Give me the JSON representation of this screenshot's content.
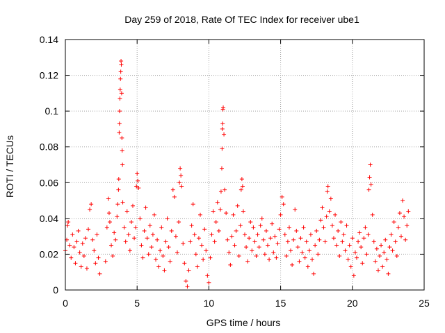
{
  "chart_data": {
    "type": "scatter",
    "title": "Day 259 of 2018, Rate Of TEC Index for receiver ube1",
    "xlabel": "GPS time / hours",
    "ylabel": "ROTI / TECUs",
    "xlim": [
      0,
      25
    ],
    "ylim": [
      0,
      0.14
    ],
    "xticks": [
      "0",
      "5",
      "10",
      "15",
      "20",
      "25"
    ],
    "yticks": [
      "0",
      "0.02",
      "0.04",
      "0.06",
      "0.08",
      "0.1",
      "0.12",
      "0.14"
    ],
    "grid": true,
    "marker": "plus",
    "series": [
      {
        "color": "#ff0000",
        "points": [
          [
            0.0,
            0.022
          ],
          [
            0.1,
            0.028
          ],
          [
            0.15,
            0.036
          ],
          [
            0.2,
            0.038
          ],
          [
            0.3,
            0.025
          ],
          [
            0.4,
            0.018
          ],
          [
            0.5,
            0.031
          ],
          [
            0.6,
            0.024
          ],
          [
            0.7,
            0.015
          ],
          [
            0.8,
            0.027
          ],
          [
            0.9,
            0.033
          ],
          [
            1.0,
            0.021
          ],
          [
            1.1,
            0.013
          ],
          [
            1.2,
            0.026
          ],
          [
            1.3,
            0.019
          ],
          [
            1.4,
            0.029
          ],
          [
            1.5,
            0.012
          ],
          [
            1.6,
            0.034
          ],
          [
            1.7,
            0.045
          ],
          [
            1.8,
            0.048
          ],
          [
            1.9,
            0.028
          ],
          [
            2.0,
            0.022
          ],
          [
            2.1,
            0.015
          ],
          [
            2.2,
            0.031
          ],
          [
            2.3,
            0.018
          ],
          [
            2.4,
            0.009
          ],
          [
            2.8,
            0.016
          ],
          [
            2.9,
            0.035
          ],
          [
            3.0,
            0.051
          ],
          [
            3.05,
            0.043
          ],
          [
            3.1,
            0.038
          ],
          [
            3.2,
            0.025
          ],
          [
            3.3,
            0.019
          ],
          [
            3.4,
            0.032
          ],
          [
            3.5,
            0.028
          ],
          [
            3.6,
            0.041
          ],
          [
            3.65,
            0.048
          ],
          [
            3.7,
            0.056
          ],
          [
            3.72,
            0.062
          ],
          [
            3.75,
            0.088
          ],
          [
            3.77,
            0.093
          ],
          [
            3.78,
            0.1
          ],
          [
            3.8,
            0.107
          ],
          [
            3.82,
            0.112
          ],
          [
            3.84,
            0.118
          ],
          [
            3.86,
            0.122
          ],
          [
            3.88,
            0.128
          ],
          [
            3.9,
            0.126
          ],
          [
            3.92,
            0.11
          ],
          [
            3.94,
            0.085
          ],
          [
            3.96,
            0.078
          ],
          [
            3.98,
            0.07
          ],
          [
            4.0,
            0.049
          ],
          [
            4.1,
            0.035
          ],
          [
            4.2,
            0.027
          ],
          [
            4.3,
            0.044
          ],
          [
            4.4,
            0.031
          ],
          [
            4.5,
            0.022
          ],
          [
            4.6,
            0.038
          ],
          [
            4.7,
            0.047
          ],
          [
            4.8,
            0.029
          ],
          [
            4.9,
            0.035
          ],
          [
            4.95,
            0.058
          ],
          [
            5.0,
            0.065
          ],
          [
            5.05,
            0.061
          ],
          [
            5.1,
            0.057
          ],
          [
            5.2,
            0.04
          ],
          [
            5.3,
            0.025
          ],
          [
            5.4,
            0.018
          ],
          [
            5.5,
            0.033
          ],
          [
            5.6,
            0.046
          ],
          [
            5.7,
            0.029
          ],
          [
            5.8,
            0.02
          ],
          [
            5.9,
            0.036
          ],
          [
            6.0,
            0.024
          ],
          [
            6.1,
            0.031
          ],
          [
            6.2,
            0.042
          ],
          [
            6.3,
            0.017
          ],
          [
            6.4,
            0.028
          ],
          [
            6.5,
            0.013
          ],
          [
            6.6,
            0.022
          ],
          [
            6.7,
            0.035
          ],
          [
            6.8,
            0.019
          ],
          [
            6.9,
            0.011
          ],
          [
            7.0,
            0.027
          ],
          [
            7.1,
            0.04
          ],
          [
            7.2,
            0.024
          ],
          [
            7.3,
            0.016
          ],
          [
            7.4,
            0.033
          ],
          [
            7.5,
            0.056
          ],
          [
            7.6,
            0.052
          ],
          [
            7.7,
            0.03
          ],
          [
            7.8,
            0.021
          ],
          [
            7.9,
            0.038
          ],
          [
            7.95,
            0.06
          ],
          [
            8.0,
            0.068
          ],
          [
            8.05,
            0.064
          ],
          [
            8.1,
            0.058
          ],
          [
            8.2,
            0.026
          ],
          [
            8.3,
            0.015
          ],
          [
            8.4,
            0.005
          ],
          [
            8.5,
            0.002
          ],
          [
            8.6,
            0.011
          ],
          [
            8.7,
            0.027
          ],
          [
            8.8,
            0.036
          ],
          [
            8.9,
            0.048
          ],
          [
            9.0,
            0.031
          ],
          [
            9.1,
            0.02
          ],
          [
            9.2,
            0.013
          ],
          [
            9.3,
            0.029
          ],
          [
            9.4,
            0.042
          ],
          [
            9.5,
            0.025
          ],
          [
            9.6,
            0.017
          ],
          [
            9.7,
            0.034
          ],
          [
            9.8,
            0.022
          ],
          [
            9.9,
            0.008
          ],
          [
            10.0,
            0.004
          ],
          [
            10.1,
            0.018
          ],
          [
            10.2,
            0.031
          ],
          [
            10.3,
            0.044
          ],
          [
            10.4,
            0.027
          ],
          [
            10.5,
            0.038
          ],
          [
            10.6,
            0.049
          ],
          [
            10.7,
            0.033
          ],
          [
            10.8,
            0.045
          ],
          [
            10.85,
            0.055
          ],
          [
            10.9,
            0.068
          ],
          [
            10.92,
            0.079
          ],
          [
            10.94,
            0.09
          ],
          [
            10.96,
            0.093
          ],
          [
            10.98,
            0.101
          ],
          [
            11.0,
            0.102
          ],
          [
            11.05,
            0.087
          ],
          [
            11.1,
            0.056
          ],
          [
            11.2,
            0.043
          ],
          [
            11.3,
            0.028
          ],
          [
            11.4,
            0.021
          ],
          [
            11.5,
            0.014
          ],
          [
            11.6,
            0.03
          ],
          [
            11.7,
            0.042
          ],
          [
            11.8,
            0.025
          ],
          [
            11.9,
            0.033
          ],
          [
            12.0,
            0.047
          ],
          [
            12.1,
            0.019
          ],
          [
            12.2,
            0.036
          ],
          [
            12.25,
            0.056
          ],
          [
            12.3,
            0.062
          ],
          [
            12.35,
            0.058
          ],
          [
            12.4,
            0.044
          ],
          [
            12.5,
            0.031
          ],
          [
            12.6,
            0.024
          ],
          [
            12.7,
            0.016
          ],
          [
            12.8,
            0.029
          ],
          [
            12.9,
            0.038
          ],
          [
            13.0,
            0.022
          ],
          [
            13.1,
            0.035
          ],
          [
            13.2,
            0.027
          ],
          [
            13.3,
            0.019
          ],
          [
            13.4,
            0.031
          ],
          [
            13.5,
            0.024
          ],
          [
            13.6,
            0.036
          ],
          [
            13.7,
            0.04
          ],
          [
            13.8,
            0.028
          ],
          [
            13.9,
            0.02
          ],
          [
            14.0,
            0.033
          ],
          [
            14.1,
            0.025
          ],
          [
            14.2,
            0.017
          ],
          [
            14.3,
            0.029
          ],
          [
            14.4,
            0.037
          ],
          [
            14.5,
            0.021
          ],
          [
            14.6,
            0.03
          ],
          [
            14.7,
            0.018
          ],
          [
            14.8,
            0.026
          ],
          [
            14.9,
            0.034
          ],
          [
            15.0,
            0.042
          ],
          [
            15.1,
            0.052
          ],
          [
            15.2,
            0.048
          ],
          [
            15.3,
            0.031
          ],
          [
            15.4,
            0.019
          ],
          [
            15.5,
            0.027
          ],
          [
            15.6,
            0.035
          ],
          [
            15.7,
            0.022
          ],
          [
            15.8,
            0.014
          ],
          [
            15.9,
            0.028
          ],
          [
            16.0,
            0.045
          ],
          [
            16.1,
            0.033
          ],
          [
            16.2,
            0.024
          ],
          [
            16.3,
            0.016
          ],
          [
            16.4,
            0.029
          ],
          [
            16.5,
            0.021
          ],
          [
            16.6,
            0.035
          ],
          [
            16.7,
            0.018
          ],
          [
            16.8,
            0.027
          ],
          [
            16.9,
            0.013
          ],
          [
            17.0,
            0.022
          ],
          [
            17.1,
            0.031
          ],
          [
            17.2,
            0.017
          ],
          [
            17.3,
            0.009
          ],
          [
            17.4,
            0.025
          ],
          [
            17.5,
            0.033
          ],
          [
            17.6,
            0.02
          ],
          [
            17.7,
            0.028
          ],
          [
            17.8,
            0.039
          ],
          [
            17.9,
            0.046
          ],
          [
            18.0,
            0.035
          ],
          [
            18.1,
            0.027
          ],
          [
            18.2,
            0.041
          ],
          [
            18.25,
            0.055
          ],
          [
            18.3,
            0.058
          ],
          [
            18.4,
            0.044
          ],
          [
            18.5,
            0.051
          ],
          [
            18.6,
            0.036
          ],
          [
            18.7,
            0.029
          ],
          [
            18.8,
            0.042
          ],
          [
            18.9,
            0.025
          ],
          [
            19.0,
            0.033
          ],
          [
            19.1,
            0.019
          ],
          [
            19.2,
            0.038
          ],
          [
            19.3,
            0.027
          ],
          [
            19.4,
            0.031
          ],
          [
            19.5,
            0.022
          ],
          [
            19.6,
            0.036
          ],
          [
            19.7,
            0.017
          ],
          [
            19.8,
            0.025
          ],
          [
            19.9,
            0.013
          ],
          [
            20.0,
            0.029
          ],
          [
            20.1,
            0.008
          ],
          [
            20.2,
            0.021
          ],
          [
            20.3,
            0.018
          ],
          [
            20.4,
            0.027
          ],
          [
            20.5,
            0.032
          ],
          [
            20.6,
            0.024
          ],
          [
            20.7,
            0.015
          ],
          [
            20.8,
            0.029
          ],
          [
            20.9,
            0.035
          ],
          [
            21.0,
            0.02
          ],
          [
            21.1,
            0.031
          ],
          [
            21.15,
            0.056
          ],
          [
            21.2,
            0.063
          ],
          [
            21.25,
            0.07
          ],
          [
            21.3,
            0.059
          ],
          [
            21.4,
            0.042
          ],
          [
            21.5,
            0.027
          ],
          [
            21.6,
            0.016
          ],
          [
            21.7,
            0.023
          ],
          [
            21.8,
            0.011
          ],
          [
            21.9,
            0.019
          ],
          [
            22.0,
            0.025
          ],
          [
            22.1,
            0.013
          ],
          [
            22.2,
            0.021
          ],
          [
            22.3,
            0.028
          ],
          [
            22.4,
            0.017
          ],
          [
            22.5,
            0.009
          ],
          [
            22.6,
            0.024
          ],
          [
            22.7,
            0.031
          ],
          [
            22.8,
            0.022
          ],
          [
            22.9,
            0.038
          ],
          [
            23.0,
            0.027
          ],
          [
            23.1,
            0.019
          ],
          [
            23.2,
            0.035
          ],
          [
            23.3,
            0.043
          ],
          [
            23.4,
            0.03
          ],
          [
            23.5,
            0.05
          ],
          [
            23.6,
            0.041
          ],
          [
            23.7,
            0.028
          ],
          [
            23.8,
            0.036
          ],
          [
            23.9,
            0.044
          ]
        ]
      }
    ]
  }
}
